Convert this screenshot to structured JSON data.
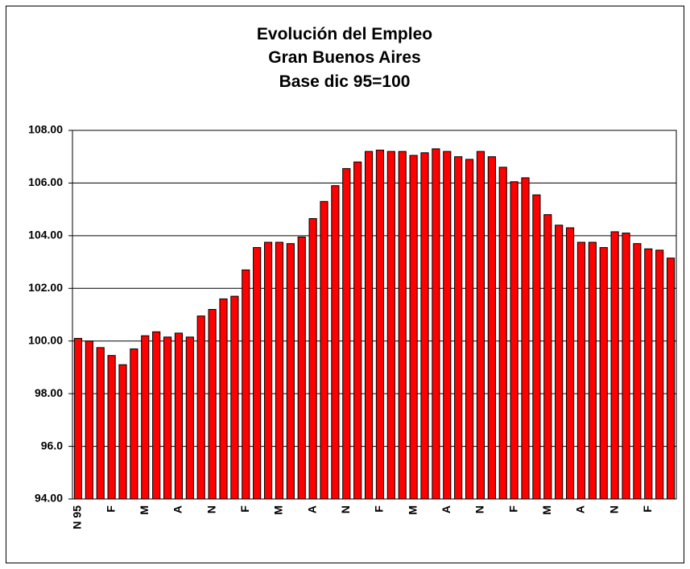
{
  "chart_data": {
    "type": "bar",
    "title": [
      "Evolución del Empleo",
      "Gran Buenos Aires",
      "Base dic 95=100"
    ],
    "categories": [
      "N 95",
      null,
      null,
      "F",
      null,
      null,
      "M",
      null,
      null,
      "A",
      null,
      null,
      "N",
      null,
      null,
      "F",
      null,
      null,
      "M",
      null,
      null,
      "A",
      null,
      null,
      "N",
      null,
      null,
      "F",
      null,
      null,
      "M",
      null,
      null,
      "A",
      null,
      null,
      "N",
      null,
      null,
      "F",
      null,
      null,
      "M",
      null,
      null,
      "A",
      null,
      null,
      "N",
      null,
      null,
      "F",
      null,
      null
    ],
    "values": [
      100.1,
      100.0,
      99.75,
      99.45,
      99.1,
      99.7,
      100.2,
      100.35,
      100.15,
      100.3,
      100.15,
      100.95,
      101.2,
      101.6,
      101.7,
      102.7,
      103.55,
      103.75,
      103.75,
      103.7,
      103.95,
      104.65,
      105.3,
      105.9,
      106.55,
      106.8,
      107.2,
      107.25,
      107.2,
      107.2,
      107.05,
      107.15,
      107.3,
      107.2,
      107.0,
      106.9,
      107.2,
      107.0,
      106.6,
      106.05,
      106.2,
      105.55,
      104.8,
      104.4,
      104.3,
      103.75,
      103.75,
      103.55,
      104.15,
      104.1,
      103.7,
      103.5,
      103.45,
      103.15
    ],
    "color": "#ff0000",
    "ylim": [
      94,
      108
    ],
    "yticks": [
      {
        "value": 94,
        "label": "94.00"
      },
      {
        "value": 96,
        "label": "96.0"
      },
      {
        "value": 98,
        "label": "98.00"
      },
      {
        "value": 100,
        "label": "100.00"
      },
      {
        "value": 102,
        "label": "102.00"
      },
      {
        "value": 104,
        "label": "104.00"
      },
      {
        "value": 106,
        "label": "106.00"
      },
      {
        "value": 108,
        "label": "108.00"
      }
    ],
    "grid": true
  }
}
